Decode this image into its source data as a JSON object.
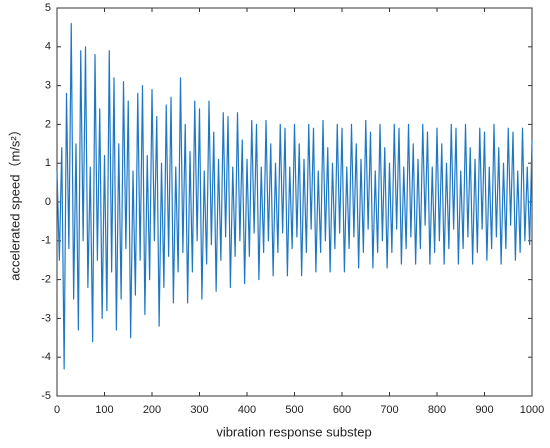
{
  "chart_data": {
    "type": "line",
    "xlabel": "vibration response substep",
    "ylabel": "accelerated speed（m/s²）",
    "xlim": [
      0,
      1000
    ],
    "xticks": [
      0,
      100,
      200,
      300,
      400,
      500,
      600,
      700,
      800,
      900,
      1000
    ],
    "ylim": [
      -5,
      5
    ],
    "yticks": [
      -5,
      -4,
      -3,
      -2,
      -1,
      0,
      1,
      2,
      3,
      4,
      5
    ],
    "grid": false,
    "series": [
      {
        "color": "#1f77c4",
        "x": [
          0,
          5,
          10,
          15,
          20,
          25,
          30,
          35,
          40,
          45,
          50,
          55,
          60,
          65,
          70,
          75,
          80,
          85,
          90,
          95,
          100,
          105,
          110,
          115,
          120,
          125,
          130,
          135,
          140,
          145,
          150,
          155,
          160,
          165,
          170,
          175,
          180,
          185,
          190,
          195,
          200,
          205,
          210,
          215,
          220,
          225,
          230,
          235,
          240,
          245,
          250,
          255,
          260,
          265,
          270,
          275,
          280,
          285,
          290,
          295,
          300,
          305,
          310,
          315,
          320,
          325,
          330,
          335,
          340,
          345,
          350,
          355,
          360,
          365,
          370,
          375,
          380,
          385,
          390,
          395,
          400,
          405,
          410,
          415,
          420,
          425,
          430,
          435,
          440,
          445,
          450,
          455,
          460,
          465,
          470,
          475,
          480,
          485,
          490,
          495,
          500,
          505,
          510,
          515,
          520,
          525,
          530,
          535,
          540,
          545,
          550,
          555,
          560,
          565,
          570,
          575,
          580,
          585,
          590,
          595,
          600,
          605,
          610,
          615,
          620,
          625,
          630,
          635,
          640,
          645,
          650,
          655,
          660,
          665,
          670,
          675,
          680,
          685,
          690,
          695,
          700,
          705,
          710,
          715,
          720,
          725,
          730,
          735,
          740,
          745,
          750,
          755,
          760,
          765,
          770,
          775,
          780,
          785,
          790,
          795,
          800,
          805,
          810,
          815,
          820,
          825,
          830,
          835,
          840,
          845,
          850,
          855,
          860,
          865,
          870,
          875,
          880,
          885,
          890,
          895,
          900,
          905,
          910,
          915,
          920,
          925,
          930,
          935,
          940,
          945,
          950,
          955,
          960,
          965,
          970,
          975,
          980,
          985,
          990,
          995,
          1000
        ],
        "values": [
          0.8,
          -1.5,
          1.4,
          -4.3,
          2.8,
          -1.2,
          4.6,
          -2.5,
          1.5,
          -3.3,
          3.9,
          -1.0,
          4.0,
          -2.2,
          0.9,
          -3.6,
          3.8,
          -1.5,
          2.4,
          -3.0,
          1.2,
          -2.8,
          3.9,
          -1.8,
          3.2,
          -3.3,
          1.5,
          -2.5,
          3.1,
          -1.2,
          2.6,
          -3.5,
          0.8,
          -2.4,
          2.8,
          -1.5,
          3.0,
          -2.9,
          1.2,
          -2.0,
          2.9,
          -1.0,
          2.2,
          -3.2,
          1.0,
          -2.2,
          2.5,
          -1.4,
          2.7,
          -2.6,
          0.9,
          -1.8,
          3.2,
          -1.3,
          2.0,
          -2.6,
          1.3,
          -1.8,
          2.6,
          -1.0,
          2.4,
          -2.5,
          0.8,
          -1.6,
          2.6,
          -1.1,
          1.8,
          -2.3,
          1.1,
          -1.5,
          2.3,
          -0.9,
          2.2,
          -2.2,
          0.9,
          -1.4,
          2.3,
          -1.0,
          1.6,
          -2.1,
          1.1,
          -1.4,
          2.1,
          -0.8,
          2.0,
          -2.0,
          0.9,
          -1.3,
          2.1,
          -1.0,
          1.5,
          -1.9,
          1.0,
          -1.3,
          2.0,
          -0.8,
          1.9,
          -1.9,
          0.9,
          -1.2,
          2.0,
          -0.9,
          1.5,
          -1.9,
          1.1,
          -1.3,
          2.0,
          -0.7,
          1.9,
          -1.8,
          0.8,
          -1.3,
          2.1,
          -1.0,
          1.4,
          -1.8,
          1.0,
          -1.2,
          2.0,
          -0.8,
          1.9,
          -1.8,
          0.9,
          -1.2,
          2.0,
          -0.9,
          1.5,
          -1.7,
          1.1,
          -1.3,
          2.1,
          -0.7,
          1.8,
          -1.7,
          0.8,
          -1.3,
          2.0,
          -1.0,
          1.4,
          -1.7,
          1.0,
          -1.3,
          2.0,
          -0.7,
          1.9,
          -1.6,
          0.9,
          -1.2,
          2.0,
          -0.9,
          1.5,
          -1.6,
          1.1,
          -1.2,
          2.0,
          -0.6,
          1.8,
          -1.6,
          0.9,
          -1.3,
          1.9,
          -1.0,
          1.5,
          -1.6,
          1.0,
          -1.2,
          2.0,
          -0.7,
          1.9,
          -1.6,
          0.8,
          -1.2,
          2.0,
          -0.9,
          1.4,
          -1.6,
          1.1,
          -1.3,
          1.9,
          -0.7,
          1.8,
          -1.5,
          0.9,
          -1.2,
          2.0,
          -0.9,
          1.4,
          -1.6,
          1.0,
          -1.2,
          1.9,
          -0.6,
          1.8,
          -1.5,
          0.8,
          -1.3,
          1.9,
          -1.0,
          0.9,
          -1.1,
          1.6
        ]
      }
    ]
  }
}
